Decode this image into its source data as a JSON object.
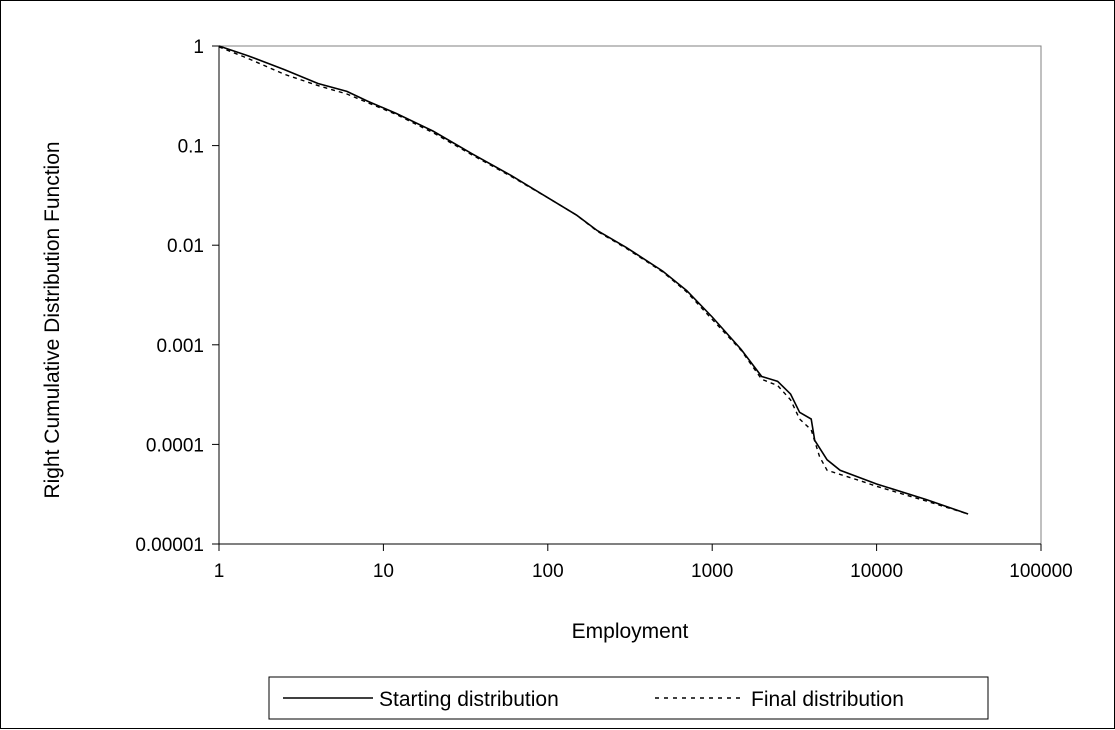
{
  "chart_data": {
    "type": "line",
    "xlabel": "Employment",
    "ylabel": "Right Cumulative Distribution Function",
    "x_scale": "log",
    "y_scale": "log",
    "xlim": [
      1,
      100000
    ],
    "ylim": [
      1e-05,
      1
    ],
    "x_ticks": [
      "1",
      "10",
      "100",
      "1000",
      "10000",
      "100000"
    ],
    "y_ticks": [
      "1",
      "0.1",
      "0.01",
      "0.001",
      "0.0001",
      "0.00001"
    ],
    "grid": false,
    "legend_position": "bottom",
    "series": [
      {
        "name": "Starting distribution",
        "style": "solid",
        "color": "#000000",
        "points": [
          [
            1,
            1
          ],
          [
            1.5,
            0.8
          ],
          [
            2.5,
            0.58
          ],
          [
            4,
            0.42
          ],
          [
            6,
            0.35
          ],
          [
            8,
            0.28
          ],
          [
            12,
            0.21
          ],
          [
            20,
            0.14
          ],
          [
            35,
            0.082
          ],
          [
            60,
            0.05
          ],
          [
            100,
            0.03
          ],
          [
            150,
            0.02
          ],
          [
            200,
            0.014
          ],
          [
            300,
            0.0095
          ],
          [
            500,
            0.0055
          ],
          [
            700,
            0.0035
          ],
          [
            1000,
            0.0019
          ],
          [
            1500,
            0.0009
          ],
          [
            2000,
            0.00048
          ],
          [
            2500,
            0.00043
          ],
          [
            3000,
            0.00032
          ],
          [
            3400,
            0.00021
          ],
          [
            4000,
            0.00018
          ],
          [
            4200,
            0.00011
          ],
          [
            5000,
            7e-05
          ],
          [
            6000,
            5.5e-05
          ],
          [
            8000,
            4.6e-05
          ],
          [
            10000,
            4e-05
          ],
          [
            20000,
            2.8e-05
          ],
          [
            36000,
            2e-05
          ]
        ]
      },
      {
        "name": "Final distribution",
        "style": "dashed",
        "color": "#000000",
        "points": [
          [
            1,
            0.98
          ],
          [
            1.5,
            0.75
          ],
          [
            2.5,
            0.52
          ],
          [
            4,
            0.4
          ],
          [
            6,
            0.33
          ],
          [
            8,
            0.27
          ],
          [
            12,
            0.205
          ],
          [
            20,
            0.135
          ],
          [
            35,
            0.08
          ],
          [
            60,
            0.049
          ],
          [
            100,
            0.03
          ],
          [
            150,
            0.02
          ],
          [
            200,
            0.0138
          ],
          [
            300,
            0.0093
          ],
          [
            500,
            0.0054
          ],
          [
            700,
            0.0034
          ],
          [
            1000,
            0.0018
          ],
          [
            1500,
            0.00088
          ],
          [
            2000,
            0.00045
          ],
          [
            2500,
            0.00039
          ],
          [
            3000,
            0.00028
          ],
          [
            3400,
            0.00018
          ],
          [
            4000,
            0.00014
          ],
          [
            4500,
            7.5e-05
          ],
          [
            5000,
            5.5e-05
          ],
          [
            6000,
            5e-05
          ],
          [
            8000,
            4.3e-05
          ],
          [
            10000,
            3.8e-05
          ],
          [
            20000,
            2.7e-05
          ],
          [
            36000,
            2e-05
          ]
        ]
      }
    ]
  }
}
